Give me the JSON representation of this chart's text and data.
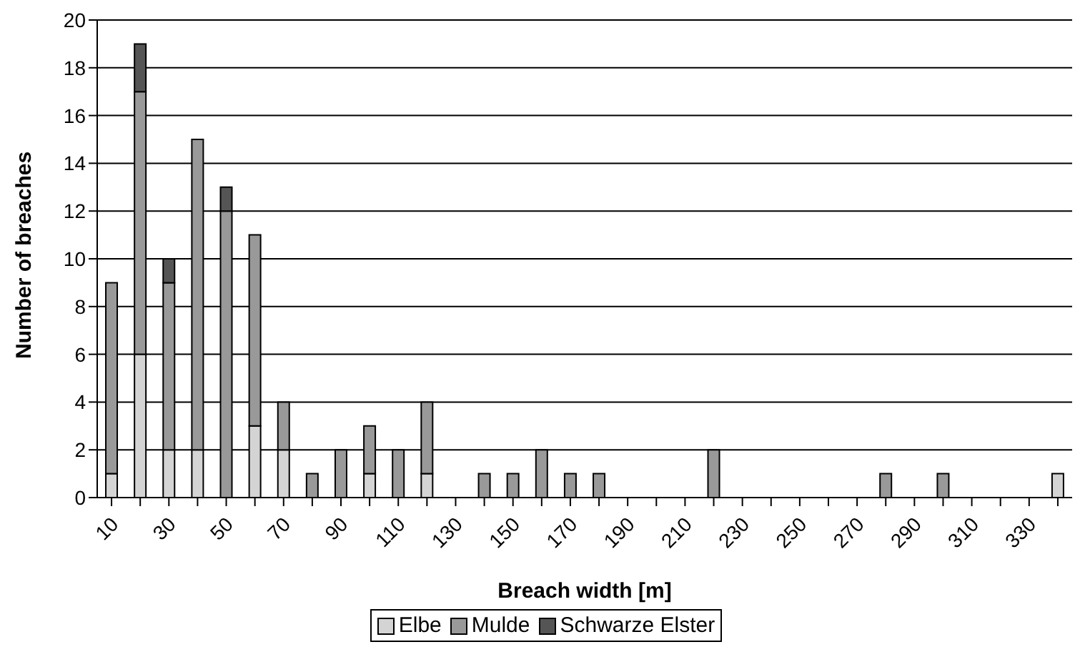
{
  "chart_data": {
    "type": "bar",
    "stacked": true,
    "xlabel": "Breach width [m]",
    "ylabel": "Number of breaches",
    "categories": [
      "10",
      null,
      "30",
      null,
      "50",
      null,
      "70",
      null,
      "90",
      null,
      "110",
      null,
      "130",
      null,
      "150",
      null,
      "170",
      null,
      "190",
      null,
      "210",
      null,
      "230",
      null,
      "250",
      null,
      "270",
      null,
      "290",
      null,
      "310",
      null,
      "330",
      null
    ],
    "series": [
      {
        "name": "Elbe",
        "color": "#d4d4d4",
        "values": [
          1,
          6,
          2,
          2,
          0,
          3,
          2,
          0,
          0,
          1,
          0,
          1,
          0,
          0,
          0,
          0,
          0,
          0,
          0,
          0,
          0,
          0,
          0,
          0,
          0,
          0,
          0,
          0,
          0,
          0,
          0,
          0,
          0,
          1
        ]
      },
      {
        "name": "Mulde",
        "color": "#999999",
        "values": [
          8,
          11,
          7,
          13,
          12,
          8,
          2,
          1,
          2,
          2,
          2,
          3,
          0,
          1,
          1,
          2,
          1,
          1,
          0,
          0,
          0,
          2,
          0,
          0,
          0,
          0,
          0,
          1,
          0,
          1,
          0,
          0,
          0,
          0
        ]
      },
      {
        "name": "Schwarze Elster",
        "color": "#555555",
        "values": [
          0,
          2,
          1,
          0,
          1,
          0,
          0,
          0,
          0,
          0,
          0,
          0,
          0,
          0,
          0,
          0,
          0,
          0,
          0,
          0,
          0,
          0,
          0,
          0,
          0,
          0,
          0,
          0,
          0,
          0,
          0,
          0,
          0,
          0
        ]
      }
    ],
    "ylim": [
      0,
      20
    ],
    "yticks": [
      0,
      2,
      4,
      6,
      8,
      10,
      12,
      14,
      16,
      18,
      20
    ],
    "grid": "y",
    "legend": "bottom"
  }
}
